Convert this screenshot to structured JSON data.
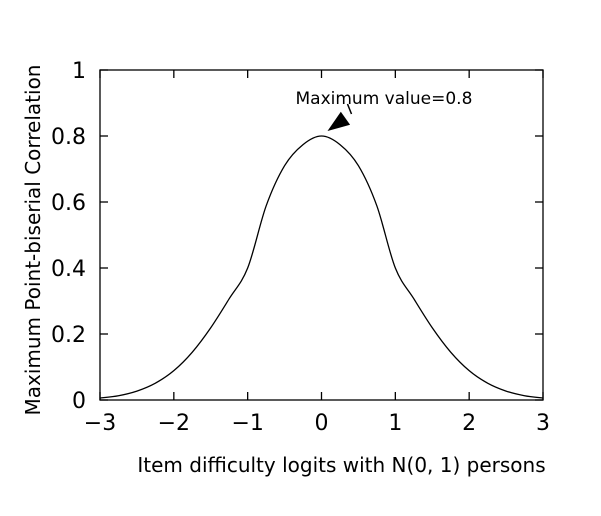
{
  "chart_data": {
    "type": "line",
    "title": "",
    "xlabel": "Item difficulty logits with N(0, 1) persons",
    "ylabel": "Maximum Point-biserial Correlation",
    "xlim": [
      -3,
      3
    ],
    "ylim": [
      0,
      1
    ],
    "x_ticks": [
      -3,
      -2,
      -1,
      0,
      1,
      2,
      3
    ],
    "x_tick_labels": [
      "−3",
      "−2",
      "−1",
      "0",
      "1",
      "2",
      "3"
    ],
    "y_ticks": [
      0,
      0.2,
      0.4,
      0.6,
      0.8,
      1
    ],
    "y_tick_labels": [
      "0",
      "0.2",
      "0.4",
      "0.6",
      "0.8",
      "1"
    ],
    "grid": false,
    "series": [
      {
        "x": [
          -3,
          -2.75,
          -2.5,
          -2.25,
          -2,
          -1.75,
          -1.5,
          -1.25,
          -1,
          -0.75,
          -0.5,
          -0.25,
          0,
          0.25,
          0.5,
          0.75,
          1,
          1.25,
          1.5,
          1.75,
          2,
          2.25,
          2.5,
          2.75,
          3
        ],
        "values": [
          0.006,
          0.013,
          0.027,
          0.051,
          0.089,
          0.145,
          0.219,
          0.307,
          0.4,
          0.588,
          0.71,
          0.774,
          0.8,
          0.774,
          0.71,
          0.588,
          0.4,
          0.307,
          0.219,
          0.145,
          0.089,
          0.051,
          0.027,
          0.013,
          0.006
        ]
      }
    ],
    "annotations": [
      {
        "text": "Maximum value=0.8",
        "x": 0,
        "y": 0.8
      }
    ]
  }
}
